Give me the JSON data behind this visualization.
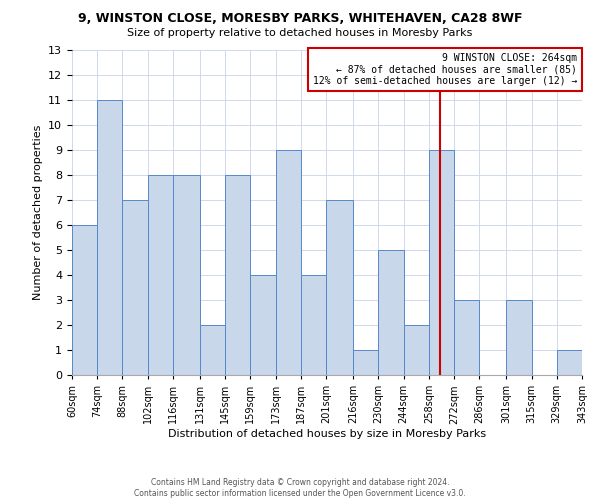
{
  "title1": "9, WINSTON CLOSE, MORESBY PARKS, WHITEHAVEN, CA28 8WF",
  "title2": "Size of property relative to detached houses in Moresby Parks",
  "xlabel": "Distribution of detached houses by size in Moresby Parks",
  "ylabel": "Number of detached properties",
  "bin_edges": [
    60,
    74,
    88,
    102,
    116,
    131,
    145,
    159,
    173,
    187,
    201,
    216,
    230,
    244,
    258,
    272,
    286,
    301,
    315,
    329,
    343
  ],
  "bin_labels": [
    "60sqm",
    "74sqm",
    "88sqm",
    "102sqm",
    "116sqm",
    "131sqm",
    "145sqm",
    "159sqm",
    "173sqm",
    "187sqm",
    "201sqm",
    "216sqm",
    "230sqm",
    "244sqm",
    "258sqm",
    "272sqm",
    "286sqm",
    "301sqm",
    "315sqm",
    "329sqm",
    "343sqm"
  ],
  "bar_heights": [
    6,
    11,
    7,
    8,
    8,
    2,
    8,
    4,
    9,
    4,
    7,
    1,
    5,
    2,
    9,
    3,
    0,
    3,
    0,
    1
  ],
  "bar_color": "#c8d8ea",
  "bar_edge_color": "#5588cc",
  "vline_x": 264,
  "vline_color": "#cc0000",
  "ylim": [
    0,
    13
  ],
  "yticks": [
    0,
    1,
    2,
    3,
    4,
    5,
    6,
    7,
    8,
    9,
    10,
    11,
    12,
    13
  ],
  "annotation_title": "9 WINSTON CLOSE: 264sqm",
  "annotation_line1": "← 87% of detached houses are smaller (85)",
  "annotation_line2": "12% of semi-detached houses are larger (12) →",
  "annotation_box_color": "#ffffff",
  "annotation_box_edge": "#cc0000",
  "footer1": "Contains HM Land Registry data © Crown copyright and database right 2024.",
  "footer2": "Contains public sector information licensed under the Open Government Licence v3.0.",
  "background_color": "#ffffff",
  "grid_color": "#d0d8ec"
}
